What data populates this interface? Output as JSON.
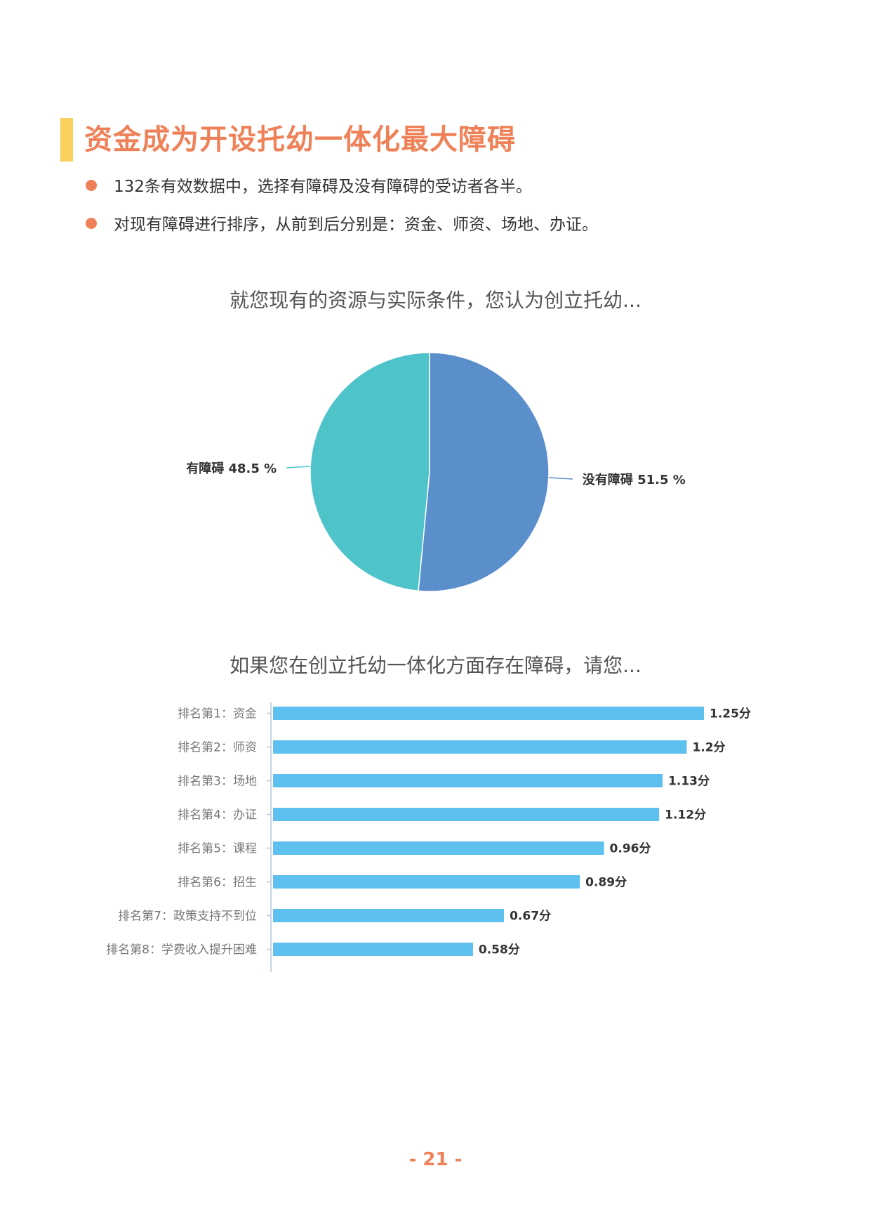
{
  "header": {
    "title": "资金成为开设托幼一体化最大障碍",
    "accent_color": "#f9cf5e",
    "title_color": "#ef8158"
  },
  "bullets": [
    "132条有效数据中，选择有障碍及没有障碍的受访者各半。",
    "对现有障碍进行排序，从前到后分别是：资金、师资、场地、办证。"
  ],
  "chart_data": [
    {
      "type": "pie",
      "title": "就您现有的资源与实际条件，您认为创立托幼...",
      "slices": [
        {
          "name": "没有障碍",
          "value": 51.5,
          "label": "没有障碍 51.5 %",
          "color": "#5b8fcb"
        },
        {
          "name": "有障碍",
          "value": 48.5,
          "label": "有障碍 48.5 %",
          "color": "#4ec3c9"
        }
      ]
    },
    {
      "type": "bar",
      "orientation": "horizontal",
      "title": "如果您在创立托幼一体化方面存在障碍，请您...",
      "categories": [
        "排名第1：资金",
        "排名第2：师资",
        "排名第3：场地",
        "排名第4：办证",
        "排名第5：课程",
        "排名第6：招生",
        "排名第7：政策支持不到位",
        "排名第8：学费收入提升困难"
      ],
      "values": [
        1.25,
        1.2,
        1.13,
        1.12,
        0.96,
        0.89,
        0.67,
        0.58
      ],
      "data_labels": [
        "1.25分",
        "1.2分",
        "1.13分",
        "1.12分",
        "0.96分",
        "0.89分",
        "0.67分",
        "0.58分"
      ],
      "bar_color": "#5ec0ee",
      "xlim": [
        0,
        1.25
      ]
    }
  ],
  "footer": {
    "page_number": "- 21 -"
  }
}
